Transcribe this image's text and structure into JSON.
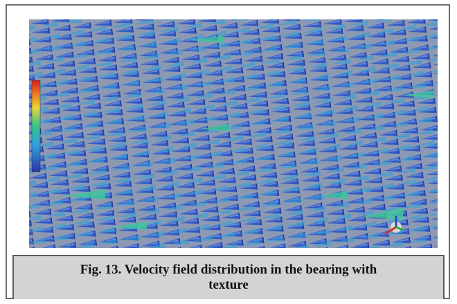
{
  "figure": {
    "caption": "Fig. 13. Velocity field distribution in the bearing with texture"
  }
}
